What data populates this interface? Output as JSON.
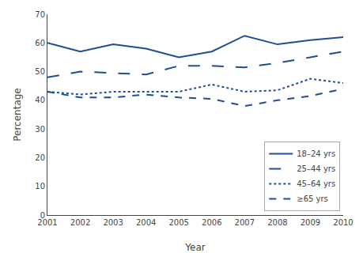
{
  "chart_data": {
    "type": "line",
    "xlabel": "Year",
    "ylabel": "Percentage",
    "x": [
      2001,
      2002,
      2003,
      2004,
      2005,
      2006,
      2007,
      2008,
      2009,
      2010
    ],
    "series": [
      {
        "name": "18–24 yrs",
        "color": "#1f4e96",
        "line_style": "solid",
        "values": [
          60,
          57,
          59.5,
          58,
          55,
          57,
          62.5,
          59.5,
          61,
          62
        ]
      },
      {
        "name": "25–44 yrs",
        "color": "#1f4e96",
        "line_style": "longdash",
        "values": [
          48,
          50,
          49.5,
          49,
          52,
          52,
          51.5,
          53,
          55,
          57
        ]
      },
      {
        "name": "45–64 yrs",
        "color": "#1f4e96",
        "line_style": "dot",
        "values": [
          43,
          42,
          43,
          43,
          43,
          45.5,
          43,
          43.5,
          47.5,
          46
        ]
      },
      {
        "name": "≥65 yrs",
        "color": "#1f4e96",
        "line_style": "dash",
        "values": [
          43,
          41,
          41,
          42,
          41,
          40.5,
          38,
          40,
          41.5,
          44
        ]
      }
    ],
    "xlim": [
      2001,
      2010
    ],
    "xticks": [
      2001,
      2002,
      2003,
      2004,
      2005,
      2006,
      2007,
      2008,
      2009,
      2010
    ],
    "ylim": [
      0,
      70
    ],
    "yticks": [
      0,
      10,
      20,
      30,
      40,
      50,
      60,
      70
    ],
    "grid": false,
    "legend": "lower right"
  }
}
